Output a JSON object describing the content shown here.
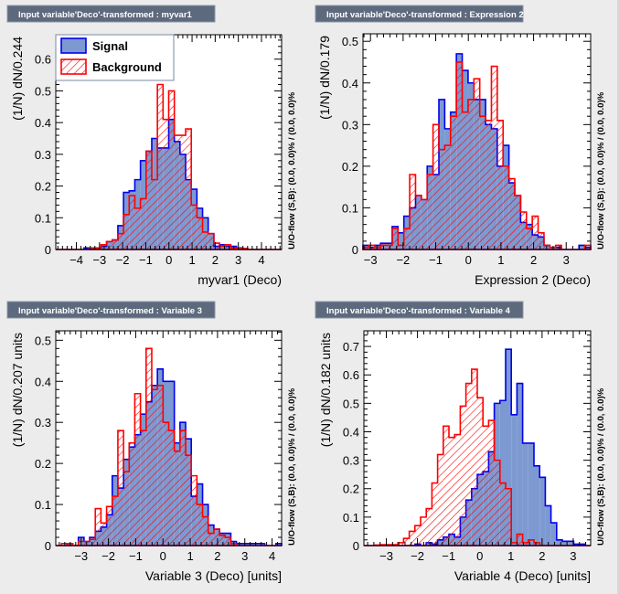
{
  "colors": {
    "signal_fill": "#7d99d1",
    "signal_line": "#0000ee",
    "background_line": "#ff0000",
    "title_bar": "#5d6a7e"
  },
  "legend": {
    "signal": "Signal",
    "background": "Background"
  },
  "chart_data": [
    {
      "type": "bar",
      "title": "Input variable'Deco'-transformed : myvar1",
      "xlabel": "myvar1 (Deco)",
      "ylabel": "(1/N) dN/0.244",
      "right_label": "U/O-flow (S,B): (0.0, 0.0)% / (0.0, 0.0)%",
      "xlim": [
        -4.89,
        4.87
      ],
      "ylim": [
        0,
        0.677
      ],
      "x_ticks": [
        -4,
        -3,
        -2,
        -1,
        0,
        1,
        2,
        3,
        4
      ],
      "x_tick_labels": [
        "−4",
        "−3",
        "−2",
        "−1",
        "0",
        "1",
        "2",
        "3",
        "4"
      ],
      "y_ticks": [
        0,
        0.1,
        0.2,
        0.3,
        0.4,
        0.5,
        0.6
      ],
      "y_tick_labels": [
        "0",
        "0.1",
        "0.2",
        "0.3",
        "0.4",
        "0.5",
        "0.6"
      ],
      "legend": "top-left",
      "series": [
        {
          "name": "Signal",
          "values": [
            0,
            0,
            0,
            0,
            0,
            0.005,
            0.003,
            0.005,
            0.01,
            0.025,
            0.03,
            0.075,
            0.18,
            0.185,
            0.22,
            0.28,
            0.31,
            0.35,
            0.32,
            0.32,
            0.41,
            0.34,
            0.3,
            0.22,
            0.19,
            0.13,
            0.1,
            0.05,
            0.01,
            0.015,
            0.01,
            0.01,
            0.005,
            0,
            0,
            0,
            0,
            0,
            0,
            0
          ]
        },
        {
          "name": "Background",
          "values": [
            0,
            0,
            0,
            0,
            0,
            0,
            0.005,
            0.005,
            0.015,
            0.025,
            0.03,
            0.05,
            0.11,
            0.17,
            0.13,
            0.16,
            0.31,
            0.22,
            0.52,
            0.41,
            0.5,
            0.36,
            0.36,
            0.38,
            0.14,
            0.1,
            0.055,
            0.05,
            0.02,
            0.01,
            0.015,
            0.005,
            0.003,
            0.003,
            0,
            0,
            0,
            0,
            0,
            0
          ]
        }
      ]
    },
    {
      "type": "bar",
      "title": "Input variable'Deco'-transformed : Expression 2",
      "xlabel": "Expression 2 (Deco)",
      "ylabel": "(1/N) dN/0.179",
      "right_label": "U/O-flow (S,B): (0.0, 0.0)% / (0.0, 0.0)%",
      "xlim": [
        -3.23,
        3.75
      ],
      "ylim": [
        0,
        0.518
      ],
      "x_ticks": [
        -3,
        -2,
        -1,
        0,
        1,
        2,
        3
      ],
      "x_tick_labels": [
        "−3",
        "−2",
        "−1",
        "0",
        "1",
        "2",
        "3"
      ],
      "y_ticks": [
        0,
        0.1,
        0.2,
        0.3,
        0.4,
        0.5
      ],
      "y_tick_labels": [
        "0",
        "0.1",
        "0.2",
        "0.3",
        "0.4",
        "0.5"
      ],
      "series": [
        {
          "name": "Signal",
          "values": [
            0.01,
            0.005,
            0.01,
            0.015,
            0.015,
            0.055,
            0.04,
            0.08,
            0.1,
            0.13,
            0.12,
            0.2,
            0.18,
            0.36,
            0.29,
            0.33,
            0.47,
            0.43,
            0.4,
            0.36,
            0.36,
            0.3,
            0.29,
            0.2,
            0.25,
            0.16,
            0.13,
            0.065,
            0.06,
            0.035,
            0.03,
            0.01,
            0.005,
            0.005,
            0,
            0,
            0,
            0.01,
            0.005
          ]
        },
        {
          "name": "Background",
          "values": [
            0.005,
            0.01,
            0.005,
            0.01,
            0.01,
            0.05,
            0.01,
            0.05,
            0.18,
            0.13,
            0.12,
            0.18,
            0.3,
            0.24,
            0.25,
            0.32,
            0.45,
            0.33,
            0.36,
            0.41,
            0.32,
            0.31,
            0.44,
            0.31,
            0.2,
            0.17,
            0.13,
            0.09,
            0.05,
            0.08,
            0.04,
            0.01,
            0.005,
            0.01,
            0,
            0,
            0,
            0,
            0.01
          ]
        }
      ]
    },
    {
      "type": "bar",
      "title": "Input variable'Deco'-transformed : Variable 3",
      "xlabel": "Variable 3 (Deco)  [units]",
      "ylabel": "(1/N) dN/0.207 units",
      "right_label": "U/O-flow (S,B): (0.0, 0.0)% / (0.0, 0.0)%",
      "xlim": [
        -3.93,
        4.35
      ],
      "ylim": [
        0,
        0.523
      ],
      "x_ticks": [
        -3,
        -2,
        -1,
        0,
        1,
        2,
        3,
        4
      ],
      "x_tick_labels": [
        "−3",
        "−2",
        "−1",
        "0",
        "1",
        "2",
        "3",
        "4"
      ],
      "y_ticks": [
        0,
        0.1,
        0.2,
        0.3,
        0.4,
        0.5
      ],
      "y_tick_labels": [
        "0",
        "0.1",
        "0.2",
        "0.3",
        "0.4",
        "0.5"
      ],
      "series": [
        {
          "name": "Signal",
          "values": [
            0,
            0,
            0.005,
            0,
            0.02,
            0.01,
            0.02,
            0.035,
            0.045,
            0.075,
            0.17,
            0.14,
            0.21,
            0.24,
            0.27,
            0.32,
            0.35,
            0.39,
            0.43,
            0.4,
            0.4,
            0.25,
            0.3,
            0.26,
            0.12,
            0.15,
            0.1,
            0.05,
            0.04,
            0.03,
            0.03,
            0.01,
            0.005,
            0.005,
            0.005,
            0.005,
            0.005,
            0,
            0,
            0.005
          ]
        },
        {
          "name": "Background",
          "values": [
            0,
            0.005,
            0.005,
            0,
            0.01,
            0.01,
            0.015,
            0.09,
            0.055,
            0.095,
            0.12,
            0.28,
            0.18,
            0.25,
            0.37,
            0.28,
            0.48,
            0.38,
            0.39,
            0.3,
            0.28,
            0.23,
            0.28,
            0.22,
            0.17,
            0.1,
            0.07,
            0.03,
            0.04,
            0.025,
            0.02,
            0.005,
            0,
            0,
            0,
            0,
            0,
            0,
            0,
            0
          ]
        }
      ]
    },
    {
      "type": "bar",
      "title": "Input variable'Deco'-transformed : Variable 4",
      "xlabel": "Variable 4 (Deco)  [units]",
      "ylabel": "(1/N) dN/0.182 units",
      "right_label": "U/O-flow (S,B): (0.0, 0.0)% / (0.0, 0.0)%",
      "xlim": [
        -3.72,
        3.56
      ],
      "ylim": [
        0,
        0.755
      ],
      "x_ticks": [
        -3,
        -2,
        -1,
        0,
        1,
        2,
        3
      ],
      "x_tick_labels": [
        "−3",
        "−2",
        "−1",
        "0",
        "1",
        "2",
        "3"
      ],
      "y_ticks": [
        0,
        0.1,
        0.2,
        0.3,
        0.4,
        0.5,
        0.6,
        0.7
      ],
      "y_tick_labels": [
        "0",
        "0.1",
        "0.2",
        "0.3",
        "0.4",
        "0.5",
        "0.6",
        "0.7"
      ],
      "series": [
        {
          "name": "Signal",
          "values": [
            0,
            0,
            0,
            0,
            0,
            0,
            0,
            0,
            0,
            0.005,
            0,
            0.01,
            0.005,
            0.02,
            0.03,
            0.04,
            0.03,
            0.1,
            0.16,
            0.2,
            0.25,
            0.26,
            0.33,
            0.5,
            0.51,
            0.69,
            0.46,
            0.57,
            0.36,
            0.36,
            0.28,
            0.24,
            0.14,
            0.08,
            0.02,
            0.015,
            0.015,
            0.005,
            0.005,
            0
          ]
        },
        {
          "name": "Background",
          "values": [
            0,
            0,
            0.002,
            0.003,
            0.003,
            0.003,
            0.01,
            0.025,
            0.05,
            0.07,
            0.1,
            0.13,
            0.22,
            0.32,
            0.42,
            0.38,
            0.39,
            0.49,
            0.57,
            0.62,
            0.52,
            0.42,
            0.44,
            0.3,
            0.22,
            0.2,
            0.01,
            0.04,
            0.01,
            0.02,
            0.01,
            0,
            0,
            0,
            0,
            0,
            0,
            0,
            0,
            0
          ]
        }
      ]
    }
  ]
}
